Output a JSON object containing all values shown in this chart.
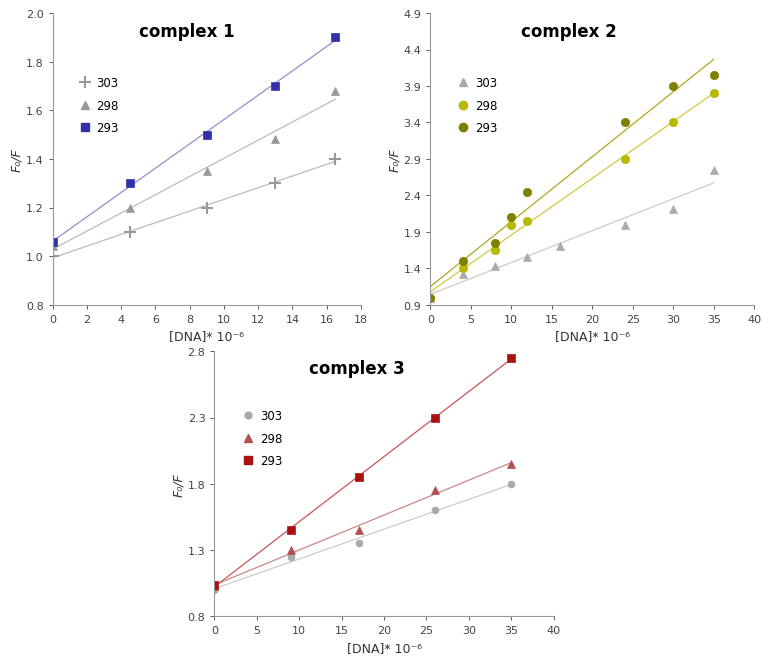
{
  "complex1": {
    "title": "complex 1",
    "xlabel": "[DNA]* 10⁻⁶",
    "ylabel": "F₀/F",
    "ylim": [
      0.8,
      2.0
    ],
    "xlim": [
      0,
      18
    ],
    "xticks": [
      0,
      2,
      4,
      6,
      8,
      10,
      12,
      14,
      16,
      18
    ],
    "yticks": [
      0.8,
      1.0,
      1.2,
      1.4,
      1.6,
      1.8,
      2.0
    ],
    "series": [
      {
        "label": "303",
        "x": [
          0,
          4.5,
          9,
          13,
          16.5
        ],
        "y": [
          1.0,
          1.1,
          1.2,
          1.3,
          1.4
        ],
        "color": "#999999",
        "marker": "+",
        "markersize": 8,
        "linecolor": "#bbbbbb"
      },
      {
        "label": "298",
        "x": [
          0,
          4.5,
          9,
          13,
          16.5
        ],
        "y": [
          1.04,
          1.2,
          1.35,
          1.48,
          1.68
        ],
        "color": "#999999",
        "marker": "^",
        "markersize": 6,
        "linecolor": "#bbbbbb"
      },
      {
        "label": "293",
        "x": [
          0,
          4.5,
          9,
          13,
          16.5
        ],
        "y": [
          1.06,
          1.3,
          1.5,
          1.7,
          1.9
        ],
        "color": "#3030aa",
        "marker": "s",
        "markersize": 6,
        "linecolor": "#9090cc"
      }
    ]
  },
  "complex2": {
    "title": "complex 2",
    "xlabel": "[DNA]* 10⁻⁶",
    "ylabel": "F₀/F",
    "ylim": [
      0.9,
      4.9
    ],
    "xlim": [
      0,
      40
    ],
    "xticks": [
      0,
      5,
      10,
      15,
      20,
      25,
      30,
      35,
      40
    ],
    "yticks": [
      0.9,
      1.4,
      1.9,
      2.4,
      2.9,
      3.4,
      3.9,
      4.4,
      4.9
    ],
    "series": [
      {
        "label": "303",
        "x": [
          0,
          4,
          8,
          12,
          16,
          24,
          30,
          35
        ],
        "y": [
          1.0,
          1.32,
          1.43,
          1.56,
          1.7,
          2.0,
          2.22,
          2.75
        ],
        "color": "#aaaaaa",
        "marker": "^",
        "markersize": 6,
        "linecolor": "#cccccc"
      },
      {
        "label": "298",
        "x": [
          0,
          4,
          8,
          10,
          12,
          24,
          30,
          35
        ],
        "y": [
          1.0,
          1.4,
          1.65,
          2.0,
          2.05,
          2.9,
          3.4,
          3.8
        ],
        "color": "#b8b800",
        "marker": "o",
        "markersize": 6,
        "linecolor": "#cccc44"
      },
      {
        "label": "293",
        "x": [
          0,
          4,
          8,
          10,
          12,
          24,
          30,
          35
        ],
        "y": [
          1.0,
          1.5,
          1.75,
          2.1,
          2.45,
          3.4,
          3.9,
          4.05
        ],
        "color": "#808000",
        "marker": "o",
        "markersize": 6,
        "linecolor": "#aaaa22"
      }
    ]
  },
  "complex3": {
    "title": "complex 3",
    "xlabel": "[DNA]* 10⁻⁶",
    "ylabel": "F₀/F",
    "ylim": [
      0.8,
      2.8
    ],
    "xlim": [
      0,
      40
    ],
    "xticks": [
      0,
      5,
      10,
      15,
      20,
      25,
      30,
      35,
      40
    ],
    "yticks": [
      0.8,
      1.3,
      1.8,
      2.3,
      2.8
    ],
    "series": [
      {
        "label": "303",
        "x": [
          0,
          9,
          17,
          26,
          35
        ],
        "y": [
          1.0,
          1.25,
          1.35,
          1.6,
          1.8
        ],
        "color": "#aaaaaa",
        "marker": "o",
        "markersize": 5,
        "linecolor": "#cccccc"
      },
      {
        "label": "298",
        "x": [
          0,
          9,
          17,
          26,
          35
        ],
        "y": [
          1.03,
          1.3,
          1.45,
          1.75,
          1.95
        ],
        "color": "#b05050",
        "marker": "^",
        "markersize": 6,
        "linecolor": "#cc8888"
      },
      {
        "label": "293",
        "x": [
          0,
          9,
          17,
          26,
          35
        ],
        "y": [
          1.04,
          1.45,
          1.85,
          2.3,
          2.75
        ],
        "color": "#aa1111",
        "marker": "s",
        "markersize": 6,
        "linecolor": "#cc5555"
      }
    ]
  },
  "bg_color": "#ffffff",
  "title_fontsize": 12,
  "label_fontsize": 9,
  "tick_fontsize": 8,
  "legend_fontsize": 8.5
}
